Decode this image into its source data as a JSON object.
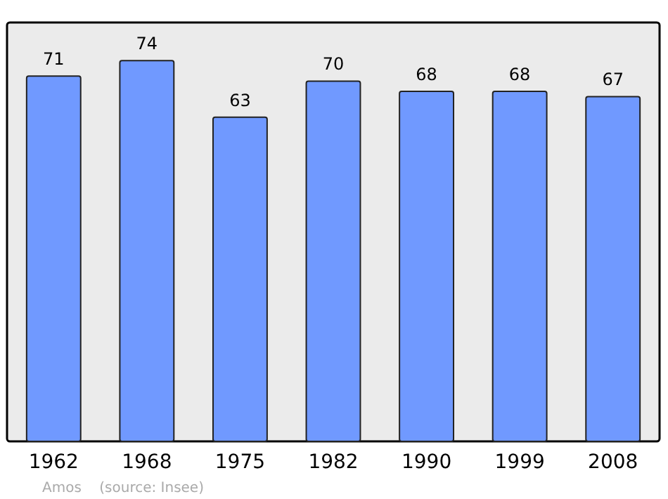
{
  "chart_data": {
    "type": "bar",
    "categories": [
      "1962",
      "1968",
      "1975",
      "1982",
      "1990",
      "1999",
      "2008"
    ],
    "values": [
      71,
      74,
      63,
      70,
      68,
      68,
      67
    ],
    "color": "#7099ff",
    "data_labels": true,
    "grid": false,
    "annotations": [
      "Amos    (source: Insee)"
    ]
  }
}
